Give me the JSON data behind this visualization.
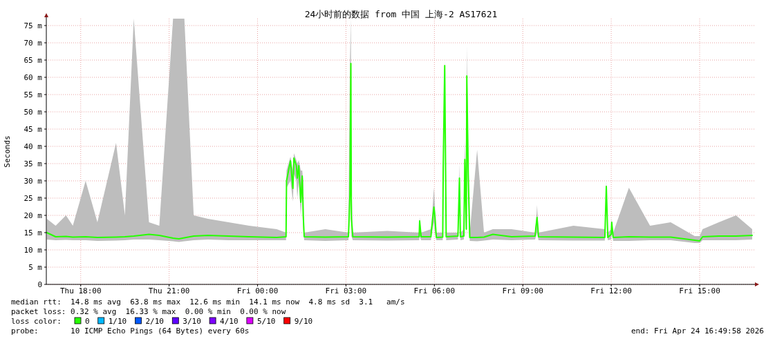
{
  "chart_data": {
    "type": "line",
    "title": "24小时前的数据 from 中国 上海-2 AS17621",
    "ylabel": "Seconds",
    "legend_title": "loss color:",
    "legend": "bottom",
    "grid": true,
    "xlim": [
      "2026-04-23T16:50",
      "2026-04-24T16:54"
    ],
    "xticks": [
      {
        "value": "2026-04-23T18:00",
        "label": "Thu 18:00"
      },
      {
        "value": "2026-04-23T21:00",
        "label": "Thu 21:00"
      },
      {
        "value": "2026-04-24T00:00",
        "label": "Fri 00:00"
      },
      {
        "value": "2026-04-24T03:00",
        "label": "Fri 03:00"
      },
      {
        "value": "2026-04-24T06:00",
        "label": "Fri 06:00"
      },
      {
        "value": "2026-04-24T09:00",
        "label": "Fri 09:00"
      },
      {
        "value": "2026-04-24T12:00",
        "label": "Fri 12:00"
      },
      {
        "value": "2026-04-24T15:00",
        "label": "Fri 15:00"
      }
    ],
    "ylim": [
      0,
      77
    ],
    "yticks": [
      0,
      {
        "value": 5,
        "label": "5 m"
      },
      {
        "value": 10,
        "label": "10 m"
      },
      {
        "value": 15,
        "label": "15 m"
      },
      {
        "value": 20,
        "label": "20 m"
      },
      {
        "value": 25,
        "label": "25 m"
      },
      {
        "value": 30,
        "label": "30 m"
      },
      {
        "value": 35,
        "label": "35 m"
      },
      {
        "value": 40,
        "label": "40 m"
      },
      {
        "value": 45,
        "label": "45 m"
      },
      {
        "value": 50,
        "label": "50 m"
      },
      {
        "value": 55,
        "label": "55 m"
      },
      {
        "value": 60,
        "label": "60 m"
      },
      {
        "value": 65,
        "label": "65 m"
      },
      {
        "value": 70,
        "label": "70 m"
      },
      {
        "value": 75,
        "label": "75 m"
      }
    ],
    "x": [
      "2026-04-23T16:51",
      "2026-04-23T17:09",
      "2026-04-23T17:30",
      "2026-04-23T17:44",
      "2026-04-23T18:10",
      "2026-04-23T18:34",
      "2026-04-23T19:12",
      "2026-04-23T19:30",
      "2026-04-23T19:48",
      "2026-04-23T20:19",
      "2026-04-23T20:40",
      "2026-04-23T21:08",
      "2026-04-23T21:20",
      "2026-04-23T21:31",
      "2026-04-23T21:50",
      "2026-04-23T22:19",
      "2026-04-23T23:01",
      "2026-04-23T23:43",
      "2026-04-24T00:39",
      "2026-04-24T00:58",
      "2026-04-24T00:59",
      "2026-04-24T01:07",
      "2026-04-24T01:12",
      "2026-04-24T01:14",
      "2026-04-24T01:19",
      "2026-04-24T01:21",
      "2026-04-24T01:24",
      "2026-04-24T01:28",
      "2026-04-24T01:31",
      "2026-04-24T01:33",
      "2026-04-24T01:35",
      "2026-04-24T02:18",
      "2026-04-24T03:05",
      "2026-04-24T03:08",
      "2026-04-24T03:10",
      "2026-04-24T03:11",
      "2026-04-24T03:14",
      "2026-04-24T04:24",
      "2026-04-24T05:29",
      "2026-04-24T05:30",
      "2026-04-24T05:33",
      "2026-04-24T05:53",
      "2026-04-24T05:54",
      "2026-04-24T05:59",
      "2026-04-24T06:01",
      "2026-04-24T06:04",
      "2026-04-24T06:17",
      "2026-04-24T06:18",
      "2026-04-24T06:21",
      "2026-04-24T06:24",
      "2026-04-24T06:48",
      "2026-04-24T06:51",
      "2026-04-24T06:53",
      "2026-04-24T07:00",
      "2026-04-24T07:02",
      "2026-04-24T07:05",
      "2026-04-24T07:06",
      "2026-04-24T07:09",
      "2026-04-24T07:12",
      "2026-04-24T07:27",
      "2026-04-24T07:41",
      "2026-04-24T07:59",
      "2026-04-24T08:37",
      "2026-04-24T09:25",
      "2026-04-24T09:27",
      "2026-04-24T09:29",
      "2026-04-24T09:32",
      "2026-04-24T10:43",
      "2026-04-24T11:47",
      "2026-04-24T11:50",
      "2026-04-24T11:53",
      "2026-04-24T12:00",
      "2026-04-24T12:01",
      "2026-04-24T12:04",
      "2026-04-24T12:36",
      "2026-04-24T13:19",
      "2026-04-24T14:01",
      "2026-04-24T14:50",
      "2026-04-24T15:00",
      "2026-04-24T15:06",
      "2026-04-24T15:39",
      "2026-04-24T16:14",
      "2026-04-24T16:47"
    ],
    "series": [
      {
        "name": "0",
        "color": "#26ff00",
        "values": [
          15,
          13.8,
          13.9,
          13.7,
          13.8,
          13.6,
          13.7,
          13.8,
          14,
          14.5,
          14.2,
          13.4,
          13.2,
          13.5,
          14,
          14.2,
          14,
          13.8,
          13.6,
          13.8,
          30,
          35.8,
          27.8,
          36.6,
          34.4,
          30.8,
          34.4,
          23.8,
          31.4,
          20,
          13.8,
          13.7,
          13.8,
          25.8,
          64,
          19,
          13.8,
          13.7,
          13.8,
          18.4,
          13.8,
          13.8,
          15.8,
          22.4,
          19.8,
          13.6,
          13.7,
          33.6,
          63.4,
          13.8,
          14,
          30.8,
          13.8,
          14,
          36.2,
          16,
          60.4,
          31,
          13.6,
          13.6,
          13.7,
          14.5,
          13.8,
          14,
          17,
          19.4,
          13.8,
          13.7,
          13.6,
          28.4,
          13.6,
          14.5,
          18,
          13.6,
          13.8,
          13.7,
          13.7,
          12.8,
          12.6,
          13.8,
          14,
          14,
          14.2
        ],
        "lower": [
          13,
          12.8,
          12.9,
          12.8,
          12.8,
          12.6,
          12.7,
          12.8,
          13,
          13,
          12.8,
          12.5,
          12.3,
          12.5,
          12.8,
          13,
          12.8,
          12.8,
          12.8,
          12.8,
          28,
          30,
          24,
          32,
          30,
          25,
          30,
          20,
          27,
          16,
          12.8,
          12.6,
          12.8,
          20,
          60,
          14,
          12.8,
          12.7,
          12.8,
          14,
          12.8,
          12.8,
          14,
          18,
          15,
          12.8,
          12.8,
          30,
          60,
          12.8,
          13,
          25,
          12.8,
          13,
          30,
          14,
          55,
          25,
          12.6,
          12.5,
          12.7,
          13,
          12.8,
          13,
          14,
          15,
          12.8,
          12.7,
          12.7,
          25,
          12.8,
          13,
          15,
          12.6,
          12.6,
          12.8,
          12.8,
          12,
          12,
          12.8,
          12.8,
          12.8,
          13
        ],
        "upper": [
          19,
          17,
          20,
          17,
          30,
          18,
          41,
          20,
          77,
          18,
          17,
          77,
          77,
          77,
          20,
          19,
          18,
          17,
          16,
          15,
          33,
          37,
          33,
          38,
          36,
          35,
          36,
          33,
          33,
          30,
          15,
          16,
          15,
          64,
          77,
          30,
          15,
          15.5,
          15,
          19.5,
          15,
          16,
          17,
          28,
          23,
          15,
          15,
          35,
          65,
          15,
          15,
          35,
          15,
          16,
          42,
          20,
          69,
          40,
          15,
          39,
          15,
          16,
          16,
          15,
          18,
          23,
          15,
          17,
          16,
          30,
          15,
          16,
          19,
          15,
          28,
          17,
          18,
          14,
          14,
          16,
          18,
          20,
          16
        ]
      },
      {
        "name": "1/10",
        "color": "#00b8ff",
        "values": [
          null,
          null,
          null,
          null,
          null,
          null,
          null,
          null,
          null,
          null,
          null,
          null,
          null,
          null,
          null,
          null,
          null,
          null,
          null,
          null,
          null,
          null,
          null,
          null,
          null,
          null,
          null,
          null,
          null,
          null,
          null,
          null,
          null,
          null,
          null,
          null,
          null,
          null,
          null,
          null,
          null,
          null,
          null,
          null,
          null,
          null,
          null,
          null,
          null,
          null,
          null,
          null,
          null,
          null,
          null,
          null,
          null,
          null,
          null,
          null,
          null,
          null,
          null,
          null,
          null,
          null,
          null,
          null,
          null,
          null,
          null,
          null,
          null,
          null,
          null,
          null,
          null,
          null,
          null,
          null,
          null,
          null,
          null
        ]
      },
      {
        "name": "2/10",
        "color": "#0059ff",
        "values": [
          null,
          null,
          null,
          null,
          null,
          null,
          null,
          null,
          null,
          null,
          null,
          null,
          null,
          null,
          null,
          null,
          null,
          null,
          null,
          null,
          null,
          null,
          null,
          null,
          null,
          null,
          null,
          null,
          null,
          null,
          null,
          null,
          null,
          null,
          null,
          null,
          null,
          null,
          null,
          null,
          null,
          null,
          null,
          null,
          null,
          null,
          null,
          null,
          null,
          null,
          null,
          null,
          null,
          null,
          null,
          null,
          null,
          null,
          null,
          null,
          null,
          null,
          null,
          null,
          null,
          null,
          null,
          null,
          null,
          null,
          null,
          null,
          null,
          null,
          null,
          null,
          null,
          null,
          null,
          null,
          null,
          null,
          null
        ]
      },
      {
        "name": "3/10",
        "color": "#5e00ff",
        "values": [
          null,
          null,
          null,
          null,
          null,
          null,
          null,
          null,
          null,
          null,
          null,
          null,
          null,
          null,
          null,
          null,
          null,
          null,
          null,
          null,
          null,
          null,
          null,
          null,
          null,
          null,
          null,
          null,
          null,
          null,
          null,
          null,
          null,
          null,
          null,
          null,
          null,
          null,
          null,
          null,
          null,
          null,
          null,
          null,
          null,
          null,
          null,
          null,
          null,
          null,
          null,
          null,
          null,
          null,
          null,
          null,
          null,
          null,
          null,
          null,
          null,
          null,
          null,
          null,
          null,
          null,
          null,
          null,
          null,
          null,
          null,
          null,
          null,
          null,
          null,
          null,
          null,
          null,
          null,
          null,
          null,
          null,
          null
        ]
      },
      {
        "name": "4/10",
        "color": "#7e00ff",
        "values": [
          null,
          null,
          null,
          null,
          null,
          null,
          null,
          null,
          null,
          null,
          null,
          null,
          null,
          null,
          null,
          null,
          null,
          null,
          null,
          null,
          null,
          null,
          null,
          null,
          null,
          null,
          null,
          null,
          null,
          null,
          null,
          null,
          null,
          null,
          null,
          null,
          null,
          null,
          null,
          null,
          null,
          null,
          null,
          null,
          null,
          null,
          null,
          null,
          null,
          null,
          null,
          null,
          null,
          null,
          null,
          null,
          null,
          null,
          null,
          null,
          null,
          null,
          null,
          null,
          null,
          null,
          null,
          null,
          null,
          null,
          null,
          null,
          null,
          null,
          null,
          null,
          null,
          null,
          null,
          null,
          null,
          null,
          null
        ]
      },
      {
        "name": "5/10",
        "color": "#dd00ff",
        "values": [
          null,
          null,
          null,
          null,
          null,
          null,
          null,
          null,
          null,
          null,
          null,
          null,
          null,
          null,
          null,
          null,
          null,
          null,
          null,
          null,
          null,
          null,
          null,
          null,
          null,
          null,
          null,
          null,
          null,
          null,
          null,
          null,
          null,
          null,
          null,
          null,
          null,
          null,
          null,
          null,
          null,
          null,
          null,
          null,
          null,
          null,
          null,
          null,
          null,
          null,
          null,
          null,
          null,
          null,
          null,
          null,
          null,
          null,
          null,
          null,
          null,
          null,
          null,
          null,
          null,
          null,
          null,
          null,
          null,
          null,
          null,
          null,
          null,
          null,
          null,
          null,
          null,
          null,
          null,
          null,
          null,
          null,
          null
        ]
      },
      {
        "name": "9/10",
        "color": "#ff0000",
        "values": [
          null,
          null,
          null,
          null,
          null,
          null,
          null,
          null,
          null,
          null,
          null,
          null,
          null,
          null,
          null,
          null,
          null,
          null,
          null,
          null,
          null,
          null,
          null,
          null,
          null,
          null,
          null,
          null,
          null,
          null,
          null,
          null,
          null,
          null,
          null,
          null,
          null,
          null,
          null,
          null,
          null,
          null,
          null,
          null,
          null,
          null,
          null,
          null,
          null,
          null,
          null,
          null,
          null,
          null,
          null,
          null,
          null,
          null,
          null,
          null,
          null,
          null,
          null,
          null,
          null,
          null,
          null,
          null,
          null,
          null,
          null,
          null,
          null,
          null,
          null,
          null,
          null,
          null,
          null,
          null,
          null,
          null,
          null
        ]
      }
    ],
    "annotations": [
      "median rtt:  14.8 ms avg  63.8 ms max  12.6 ms min  14.1 ms now  4.8 ms sd  3.1   am/s",
      "packet loss: 0.32 % avg  16.33 % max  0.00 % min  0.00 % now",
      "probe:       10 ICMP Echo Pings (64 Bytes) every 60s",
      "end: Fri Apr 24 16:49:58 2026"
    ]
  }
}
